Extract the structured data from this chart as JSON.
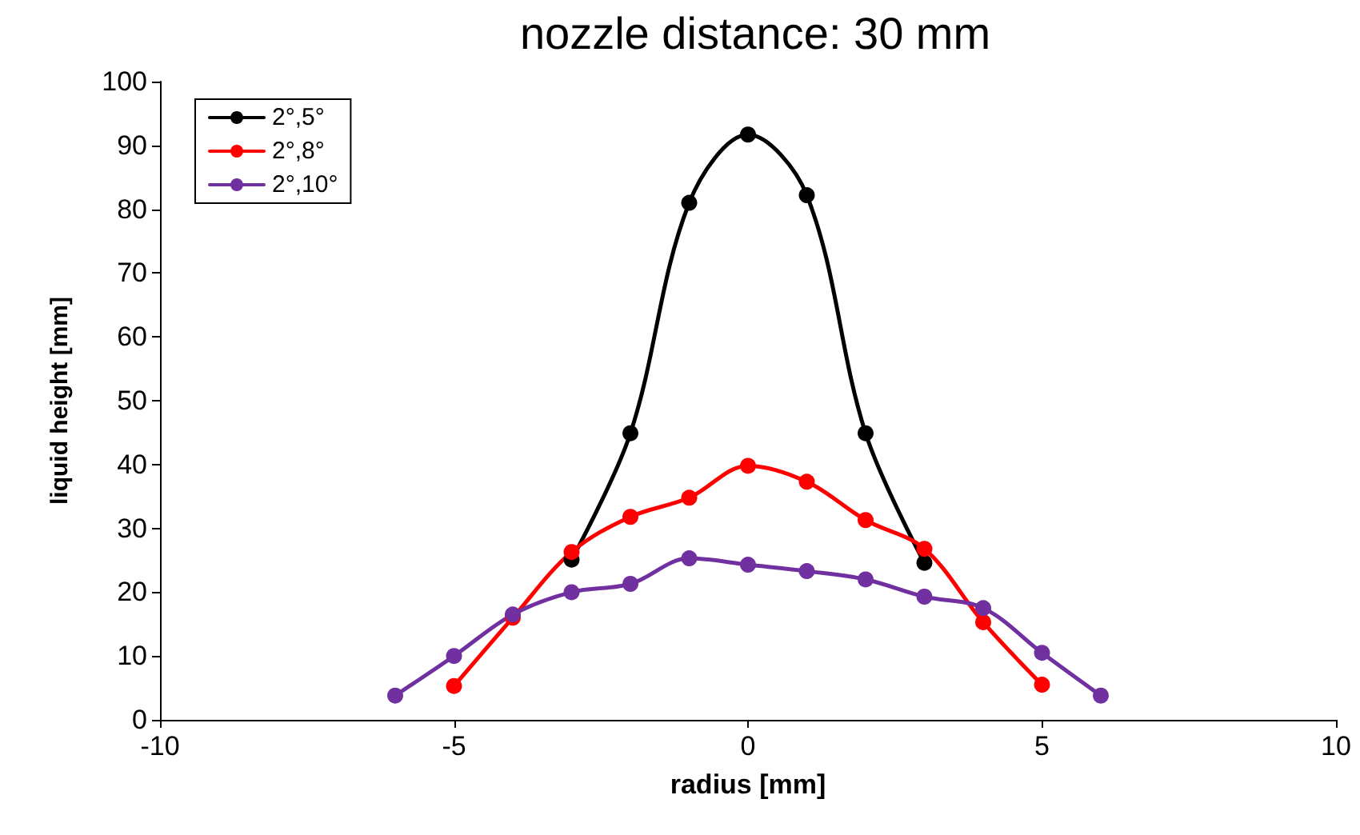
{
  "chart_data": {
    "type": "line",
    "title": "nozzle distance: 30 mm",
    "xlabel": "radius [mm]",
    "ylabel": "liquid height [mm]",
    "xlim": [
      -10,
      10
    ],
    "xticks": [
      -10,
      -5,
      0,
      5,
      10
    ],
    "ylim": [
      0,
      100
    ],
    "yticks": [
      0,
      10,
      20,
      30,
      40,
      50,
      60,
      70,
      80,
      90,
      100
    ],
    "grid": false,
    "legend": "top left",
    "marker": "circle",
    "line_style": "solid",
    "series": [
      {
        "name": "2°,5°",
        "color": "#000000",
        "x": [
          -3,
          -2,
          -1,
          0,
          1,
          2,
          3
        ],
        "values": [
          25.1,
          44.9,
          81,
          91.7,
          82.2,
          44.9,
          24.6
        ]
      },
      {
        "name": "2°,8°",
        "color": "#ff0000",
        "x": [
          -5,
          -4,
          -3,
          -2,
          -1,
          0,
          1,
          2,
          3,
          4,
          5
        ],
        "values": [
          5.3,
          16,
          26.3,
          31.8,
          34.8,
          39.8,
          37.3,
          31.3,
          26.8,
          15.3,
          5.5
        ]
      },
      {
        "name": "2°,10°",
        "color": "#7030a0",
        "x": [
          -6,
          -5,
          -4,
          -3,
          -2,
          -1,
          0,
          1,
          2,
          3,
          4,
          5,
          6
        ],
        "values": [
          3.8,
          10,
          16.5,
          20,
          21.3,
          25.3,
          24.3,
          23.3,
          22,
          19.3,
          17.5,
          10.5,
          3.8
        ]
      }
    ]
  }
}
